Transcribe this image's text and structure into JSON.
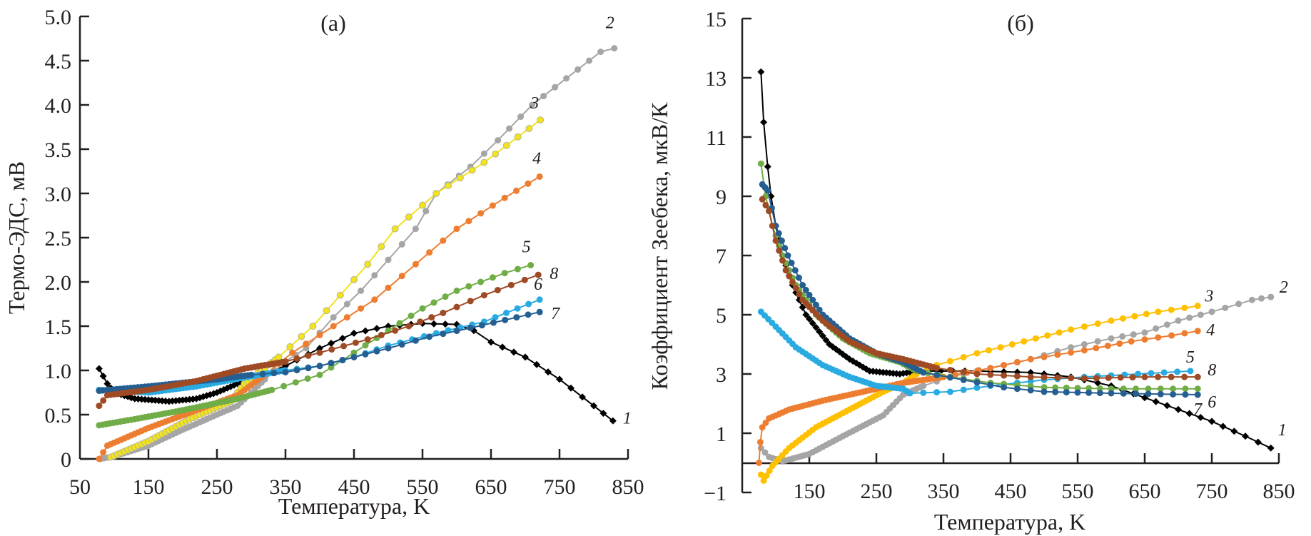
{
  "chart_data": [
    {
      "panel": "a",
      "type": "line",
      "title": "(a)",
      "xlabel": "Температура, K",
      "ylabel": "Термо-ЭДС, мВ",
      "xlim": [
        50,
        850
      ],
      "ylim": [
        0,
        5.0
      ],
      "xticks": [
        "50",
        "150",
        "250",
        "350",
        "450",
        "550",
        "650",
        "750",
        "850"
      ],
      "xtick_values": [
        50,
        150,
        250,
        350,
        450,
        550,
        650,
        750,
        850
      ],
      "yticks": [
        "0",
        "0.5",
        "1.0",
        "1.5",
        "2.0",
        "2.5",
        "3.0",
        "3.5",
        "4.0",
        "4.5",
        "5.0"
      ],
      "ytick_values": [
        0,
        0.5,
        1.0,
        1.5,
        2.0,
        2.5,
        3.0,
        3.5,
        4.0,
        4.5,
        5.0
      ],
      "grid": false,
      "series": [
        {
          "name": "1",
          "color": "#000000",
          "marker": "diamond",
          "x": [
            78,
            90,
            100,
            130,
            180,
            220,
            250,
            280,
            300,
            350,
            400,
            450,
            500,
            550,
            600,
            625,
            650,
            700,
            750,
            800,
            828
          ],
          "y": [
            1.02,
            0.85,
            0.75,
            0.68,
            0.65,
            0.68,
            0.75,
            0.85,
            0.92,
            1.05,
            1.25,
            1.42,
            1.5,
            1.53,
            1.52,
            1.45,
            1.32,
            1.15,
            0.9,
            0.6,
            0.43
          ]
        },
        {
          "name": "2",
          "color": "#a5a5a5",
          "marker": "circle",
          "x": [
            80,
            100,
            150,
            200,
            250,
            280,
            320,
            350,
            380,
            420,
            460,
            500,
            540,
            570,
            620,
            660,
            710,
            760,
            810,
            830
          ],
          "y": [
            0.0,
            0.03,
            0.15,
            0.33,
            0.5,
            0.6,
            0.9,
            1.1,
            1.25,
            1.6,
            1.9,
            2.25,
            2.6,
            3.0,
            3.3,
            3.6,
            4.0,
            4.3,
            4.6,
            4.64
          ]
        },
        {
          "name": "3",
          "color": "#f2e31a",
          "marker": "circle-outline",
          "x": [
            95,
            150,
            210,
            270,
            290,
            340,
            390,
            430,
            470,
            510,
            570,
            640,
            722
          ],
          "y": [
            0.02,
            0.2,
            0.45,
            0.65,
            0.85,
            1.15,
            1.5,
            1.85,
            2.2,
            2.6,
            3.0,
            3.35,
            3.83
          ]
        },
        {
          "name": "4",
          "color": "#ed7d31",
          "marker": "circle",
          "x": [
            78,
            90,
            150,
            220,
            280,
            320,
            360,
            420,
            480,
            540,
            600,
            670,
            721
          ],
          "y": [
            0.0,
            0.15,
            0.35,
            0.55,
            0.72,
            0.95,
            1.2,
            1.5,
            1.8,
            2.2,
            2.6,
            2.95,
            3.19
          ]
        },
        {
          "name": "5",
          "color": "#70ad47",
          "marker": "circle",
          "x": [
            78,
            130,
            200,
            280,
            330,
            400,
            450,
            500,
            550,
            600,
            670,
            708
          ],
          "y": [
            0.38,
            0.45,
            0.55,
            0.68,
            0.78,
            0.95,
            1.2,
            1.45,
            1.7,
            1.9,
            2.1,
            2.19
          ]
        },
        {
          "name": "6",
          "color": "#29abe2",
          "marker": "circle",
          "x": [
            78,
            150,
            220,
            290,
            350,
            400,
            450,
            500,
            570,
            640,
            721
          ],
          "y": [
            0.78,
            0.75,
            0.82,
            0.92,
            1.0,
            1.05,
            1.15,
            1.28,
            1.42,
            1.55,
            1.8
          ]
        },
        {
          "name": "7",
          "color": "#255e91",
          "marker": "circle",
          "x": [
            78,
            150,
            250,
            300,
            350,
            400,
            450,
            500,
            560,
            620,
            721
          ],
          "y": [
            0.77,
            0.82,
            0.9,
            0.95,
            0.98,
            1.05,
            1.15,
            1.25,
            1.38,
            1.48,
            1.66
          ]
        },
        {
          "name": "8",
          "color": "#9e4a25",
          "marker": "circle",
          "x": [
            78,
            90,
            150,
            220,
            290,
            350,
            400,
            470,
            530,
            580,
            640,
            719
          ],
          "y": [
            0.6,
            0.72,
            0.78,
            0.88,
            1.02,
            1.1,
            1.2,
            1.35,
            1.5,
            1.65,
            1.85,
            2.08
          ]
        }
      ]
    },
    {
      "panel": "b",
      "type": "line",
      "title": "(б)",
      "xlabel": "Температура, K",
      "ylabel": "Коэффициент Зеебека, мкВ/К",
      "xlim": [
        50,
        850
      ],
      "ylim": [
        -1,
        15
      ],
      "xticks": [
        "150",
        "250",
        "350",
        "450",
        "550",
        "650",
        "750",
        "850"
      ],
      "xtick_values": [
        150,
        250,
        350,
        450,
        550,
        650,
        750,
        850
      ],
      "yticks": [
        "−1",
        "1",
        "3",
        "5",
        "7",
        "9",
        "11",
        "13",
        "15"
      ],
      "ytick_values": [
        -1,
        1,
        3,
        5,
        7,
        9,
        11,
        13,
        15
      ],
      "grid": false,
      "series": [
        {
          "name": "1",
          "color": "#000000",
          "marker": "diamond",
          "x": [
            78,
            82,
            88,
            93,
            100,
            110,
            125,
            145,
            180,
            210,
            240,
            285,
            310,
            400,
            480,
            540,
            600,
            650,
            700,
            750,
            800,
            838
          ],
          "y": [
            13.2,
            11.5,
            10.0,
            9.0,
            8.0,
            7.0,
            6.0,
            5.0,
            4.0,
            3.5,
            3.1,
            3.0,
            3.1,
            3.1,
            3.05,
            2.9,
            2.6,
            2.2,
            1.8,
            1.4,
            0.9,
            0.5
          ]
        },
        {
          "name": "2",
          "color": "#a5a5a5",
          "marker": "circle",
          "x": [
            78,
            90,
            110,
            150,
            200,
            260,
            290,
            320,
            360,
            420,
            480,
            540,
            600,
            650,
            700,
            750,
            810,
            838
          ],
          "y": [
            0.5,
            0.2,
            0.05,
            0.3,
            0.9,
            1.6,
            2.3,
            2.6,
            2.9,
            3.2,
            3.5,
            3.9,
            4.2,
            4.4,
            4.8,
            5.1,
            5.5,
            5.6
          ]
        },
        {
          "name": "3",
          "color": "#ffc000",
          "marker": "circle",
          "x": [
            78,
            82,
            95,
            120,
            160,
            210,
            260,
            290,
            310,
            340,
            400,
            470,
            540,
            600,
            670,
            729
          ],
          "y": [
            -0.4,
            -0.6,
            -0.1,
            0.5,
            1.2,
            1.8,
            2.4,
            2.7,
            3.0,
            3.3,
            3.7,
            4.1,
            4.5,
            4.8,
            5.1,
            5.3
          ]
        },
        {
          "name": "4",
          "color": "#ed7d31",
          "marker": "circle",
          "x": [
            75,
            77,
            80,
            90,
            120,
            170,
            230,
            290,
            350,
            420,
            480,
            560,
            630,
            690,
            729
          ],
          "y": [
            0.0,
            0.7,
            1.2,
            1.5,
            1.8,
            2.1,
            2.4,
            2.7,
            2.9,
            3.2,
            3.5,
            3.8,
            4.1,
            4.3,
            4.45
          ]
        },
        {
          "name": "5",
          "color": "#29abe2",
          "marker": "circle",
          "x": [
            78,
            100,
            130,
            170,
            210,
            250,
            290,
            300,
            360,
            420,
            500,
            560,
            640,
            718
          ],
          "y": [
            5.1,
            4.6,
            3.9,
            3.3,
            2.9,
            2.6,
            2.5,
            2.35,
            2.4,
            2.6,
            2.8,
            2.9,
            3.0,
            3.1
          ]
        },
        {
          "name": "6",
          "color": "#70ad47",
          "marker": "circle",
          "x": [
            78,
            85,
            95,
            110,
            130,
            160,
            200,
            240,
            285,
            310,
            360,
            420,
            500,
            600,
            729
          ],
          "y": [
            10.1,
            9.0,
            8.0,
            7.0,
            6.0,
            5.0,
            4.2,
            3.7,
            3.4,
            3.1,
            2.9,
            2.7,
            2.55,
            2.5,
            2.5
          ]
        },
        {
          "name": "7",
          "color": "#255e91",
          "marker": "circle",
          "x": [
            80,
            88,
            100,
            118,
            140,
            170,
            210,
            250,
            290,
            320,
            380,
            440,
            500,
            600,
            729
          ],
          "y": [
            9.4,
            9.2,
            8.0,
            7.0,
            6.0,
            5.0,
            4.2,
            3.7,
            3.4,
            3.05,
            2.8,
            2.55,
            2.4,
            2.35,
            2.3
          ]
        },
        {
          "name": "8",
          "color": "#9e4a25",
          "marker": "circle",
          "x": [
            80,
            90,
            100,
            115,
            140,
            170,
            210,
            250,
            290,
            340,
            400,
            480,
            560,
            650,
            729
          ],
          "y": [
            8.9,
            8.5,
            7.5,
            6.5,
            5.5,
            4.8,
            4.1,
            3.7,
            3.5,
            3.2,
            3.0,
            2.9,
            2.85,
            2.9,
            2.9
          ]
        }
      ]
    }
  ]
}
